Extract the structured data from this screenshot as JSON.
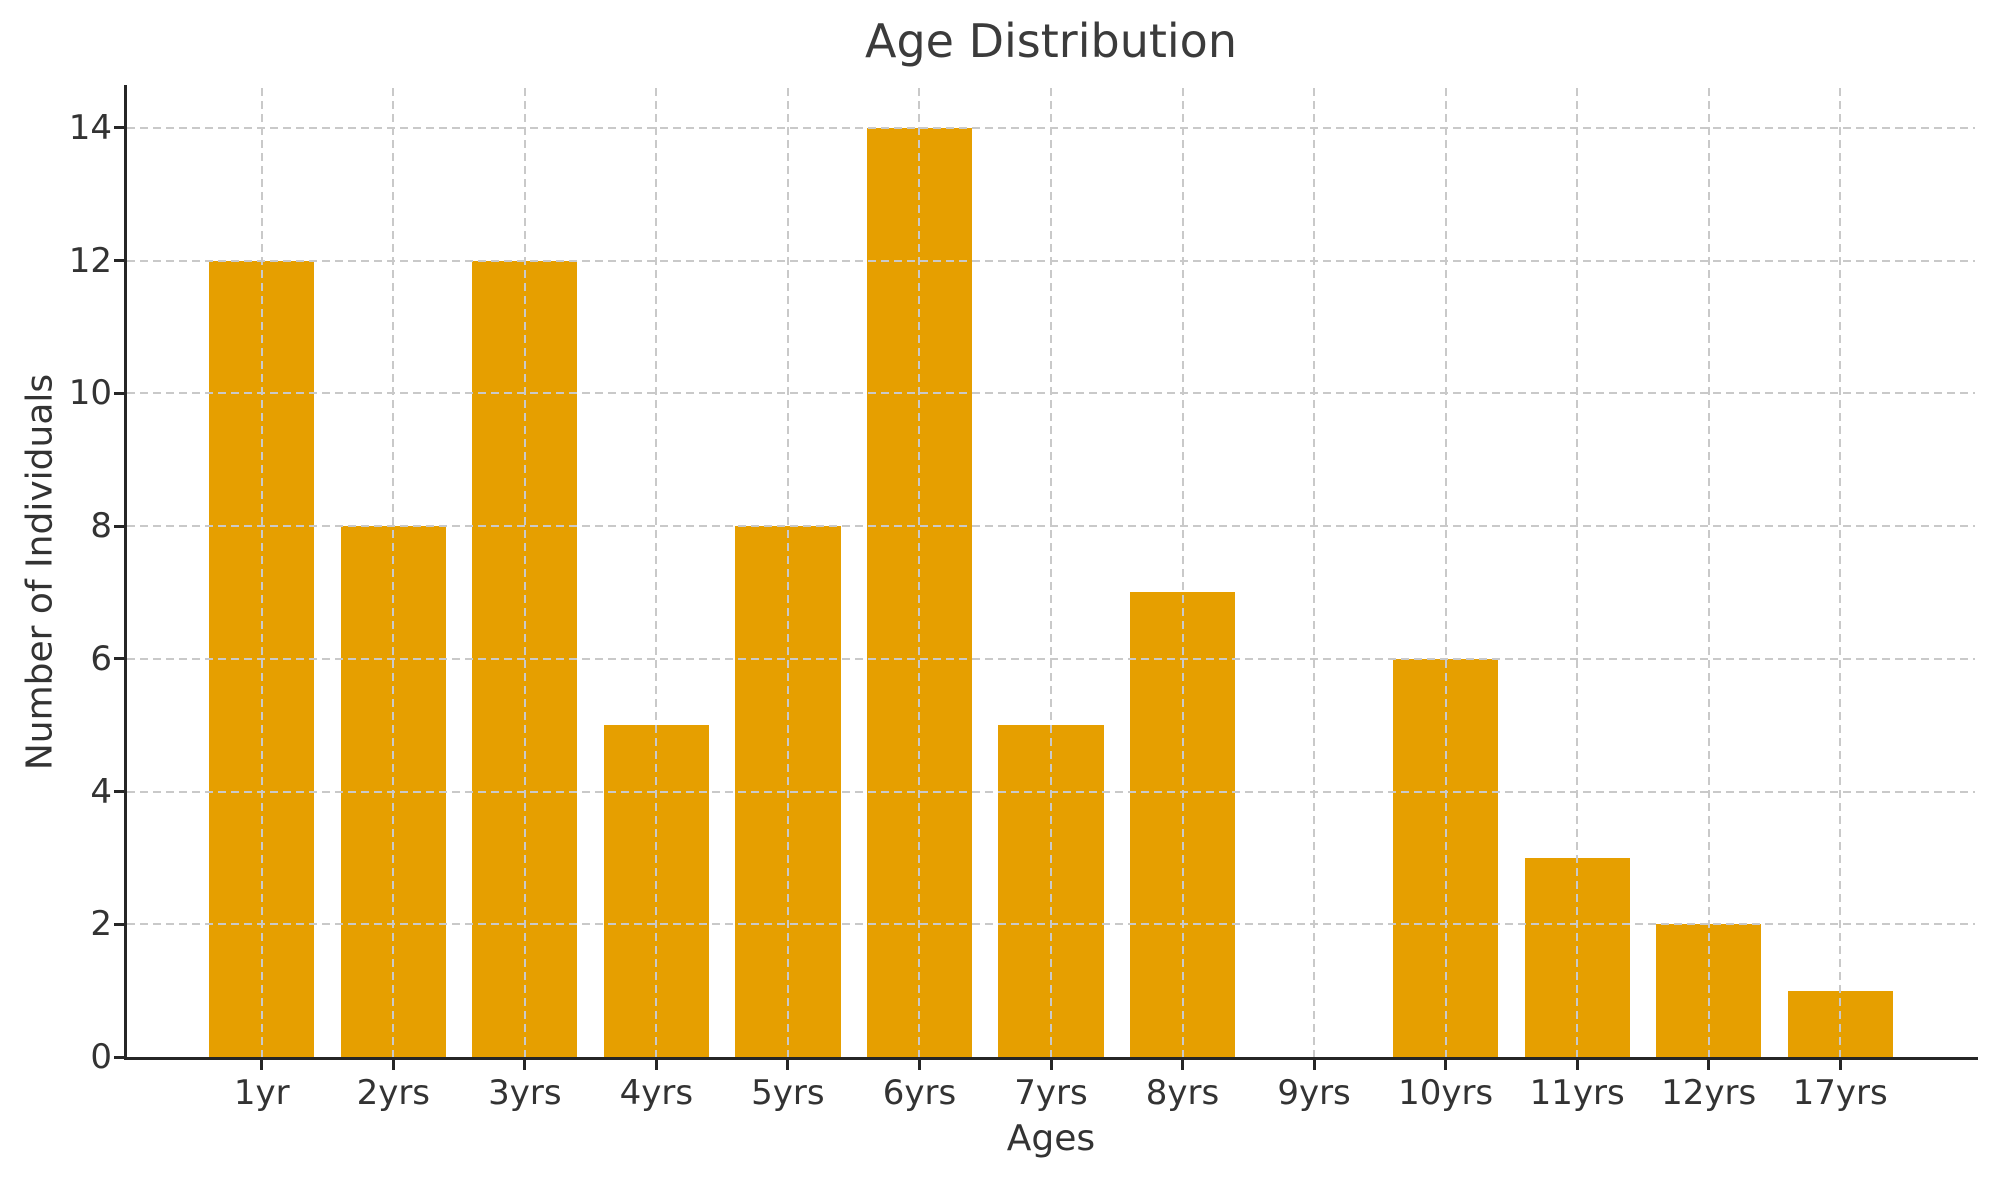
{
  "chart_data": {
    "type": "bar",
    "title": "Age Distribution",
    "xlabel": "Ages",
    "ylabel": "Number of Individuals",
    "categories": [
      "1yr",
      "2yrs",
      "3yrs",
      "4yrs",
      "5yrs",
      "6yrs",
      "7yrs",
      "8yrs",
      "9yrs",
      "10yrs",
      "11yrs",
      "12yrs",
      "17yrs"
    ],
    "values": [
      12,
      8,
      12,
      5,
      8,
      14,
      5,
      7,
      0,
      6,
      3,
      2,
      1
    ],
    "y_ticks": [
      0,
      2,
      4,
      6,
      8,
      10,
      12,
      14
    ],
    "ylim": [
      0,
      14.6
    ],
    "bar_color": "#E69F00",
    "grid": true,
    "grid_line_style": "dashed",
    "grid_color": "#c9c9c9",
    "axis_color": "#262626",
    "text_color": "#333333",
    "legend_position": "none",
    "background_color": "#ffffff"
  }
}
